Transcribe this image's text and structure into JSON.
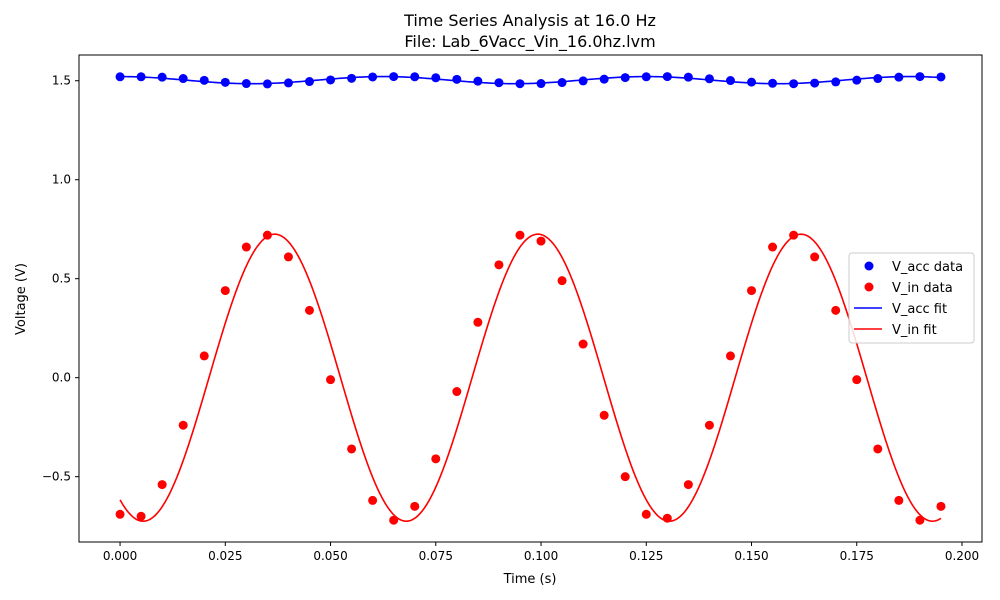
{
  "chart_data": {
    "type": "line",
    "title": "Time Series Analysis at 16.0 Hz",
    "subtitle": "File: Lab_6Vacc_Vin_16.0hz.lvm",
    "xlabel": "Time (s)",
    "ylabel": "Voltage (V)",
    "xlim": [
      -0.00975,
      0.20475
    ],
    "ylim": [
      -0.83,
      1.63
    ],
    "xticks": [
      0.0,
      0.025,
      0.05,
      0.075,
      0.1,
      0.125,
      0.15,
      0.175,
      0.2
    ],
    "xtick_labels": [
      "0.000",
      "0.025",
      "0.050",
      "0.075",
      "0.100",
      "0.125",
      "0.150",
      "0.175",
      "0.200"
    ],
    "yticks": [
      -0.5,
      0.0,
      0.5,
      1.0,
      1.5
    ],
    "ytick_labels": [
      "−0.5",
      "0.0",
      "0.5",
      "1.0",
      "1.5"
    ],
    "grid": false,
    "legend_position": "center-right",
    "x": [
      0.0,
      0.005,
      0.01,
      0.015,
      0.02,
      0.025,
      0.03,
      0.035,
      0.04,
      0.045,
      0.05,
      0.055,
      0.06,
      0.065,
      0.07,
      0.075,
      0.08,
      0.085,
      0.09,
      0.095,
      0.1,
      0.105,
      0.11,
      0.115,
      0.12,
      0.125,
      0.13,
      0.135,
      0.14,
      0.145,
      0.15,
      0.155,
      0.16,
      0.165,
      0.17,
      0.175,
      0.18,
      0.185,
      0.19,
      0.195
    ],
    "series": [
      {
        "name": "V_acc data",
        "kind": "scatter",
        "color": "#0000ff",
        "values": [
          1.52,
          1.52,
          1.518,
          1.511,
          1.502,
          1.492,
          1.486,
          1.484,
          1.489,
          1.496,
          1.504,
          1.512,
          1.519,
          1.521,
          1.52,
          1.515,
          1.507,
          1.498,
          1.49,
          1.485,
          1.486,
          1.491,
          1.499,
          1.508,
          1.516,
          1.52,
          1.521,
          1.518,
          1.51,
          1.501,
          1.493,
          1.487,
          1.485,
          1.488,
          1.494,
          1.503,
          1.511,
          1.518,
          1.521,
          1.519
        ]
      },
      {
        "name": "V_in data",
        "kind": "scatter",
        "color": "#ff0000",
        "values": [
          -0.69,
          -0.7,
          -0.54,
          -0.24,
          0.11,
          0.44,
          0.66,
          0.72,
          0.61,
          0.34,
          -0.01,
          -0.36,
          -0.62,
          -0.72,
          -0.65,
          -0.41,
          -0.07,
          0.28,
          0.57,
          0.72,
          0.69,
          0.49,
          0.17,
          -0.19,
          -0.5,
          -0.69,
          -0.71,
          -0.54,
          -0.24,
          0.11,
          0.44,
          0.66,
          0.72,
          0.61,
          0.34,
          -0.01,
          -0.36,
          -0.62,
          -0.72,
          -0.65
        ]
      },
      {
        "name": "V_acc fit",
        "kind": "line",
        "color": "#0000ff",
        "fit": {
          "offset": 1.503,
          "amplitude": 0.018,
          "frequency_hz": 16.0,
          "phase": 1.57
        },
        "fit_range": [
          0.0,
          0.195
        ]
      },
      {
        "name": "V_in fit",
        "kind": "line",
        "color": "#ff0000",
        "fit": {
          "offset": 0.0,
          "amplitude": 0.725,
          "frequency_hz": 16.0,
          "phase": -2.1235
        },
        "fit_range": [
          0.0,
          0.195
        ]
      }
    ]
  }
}
